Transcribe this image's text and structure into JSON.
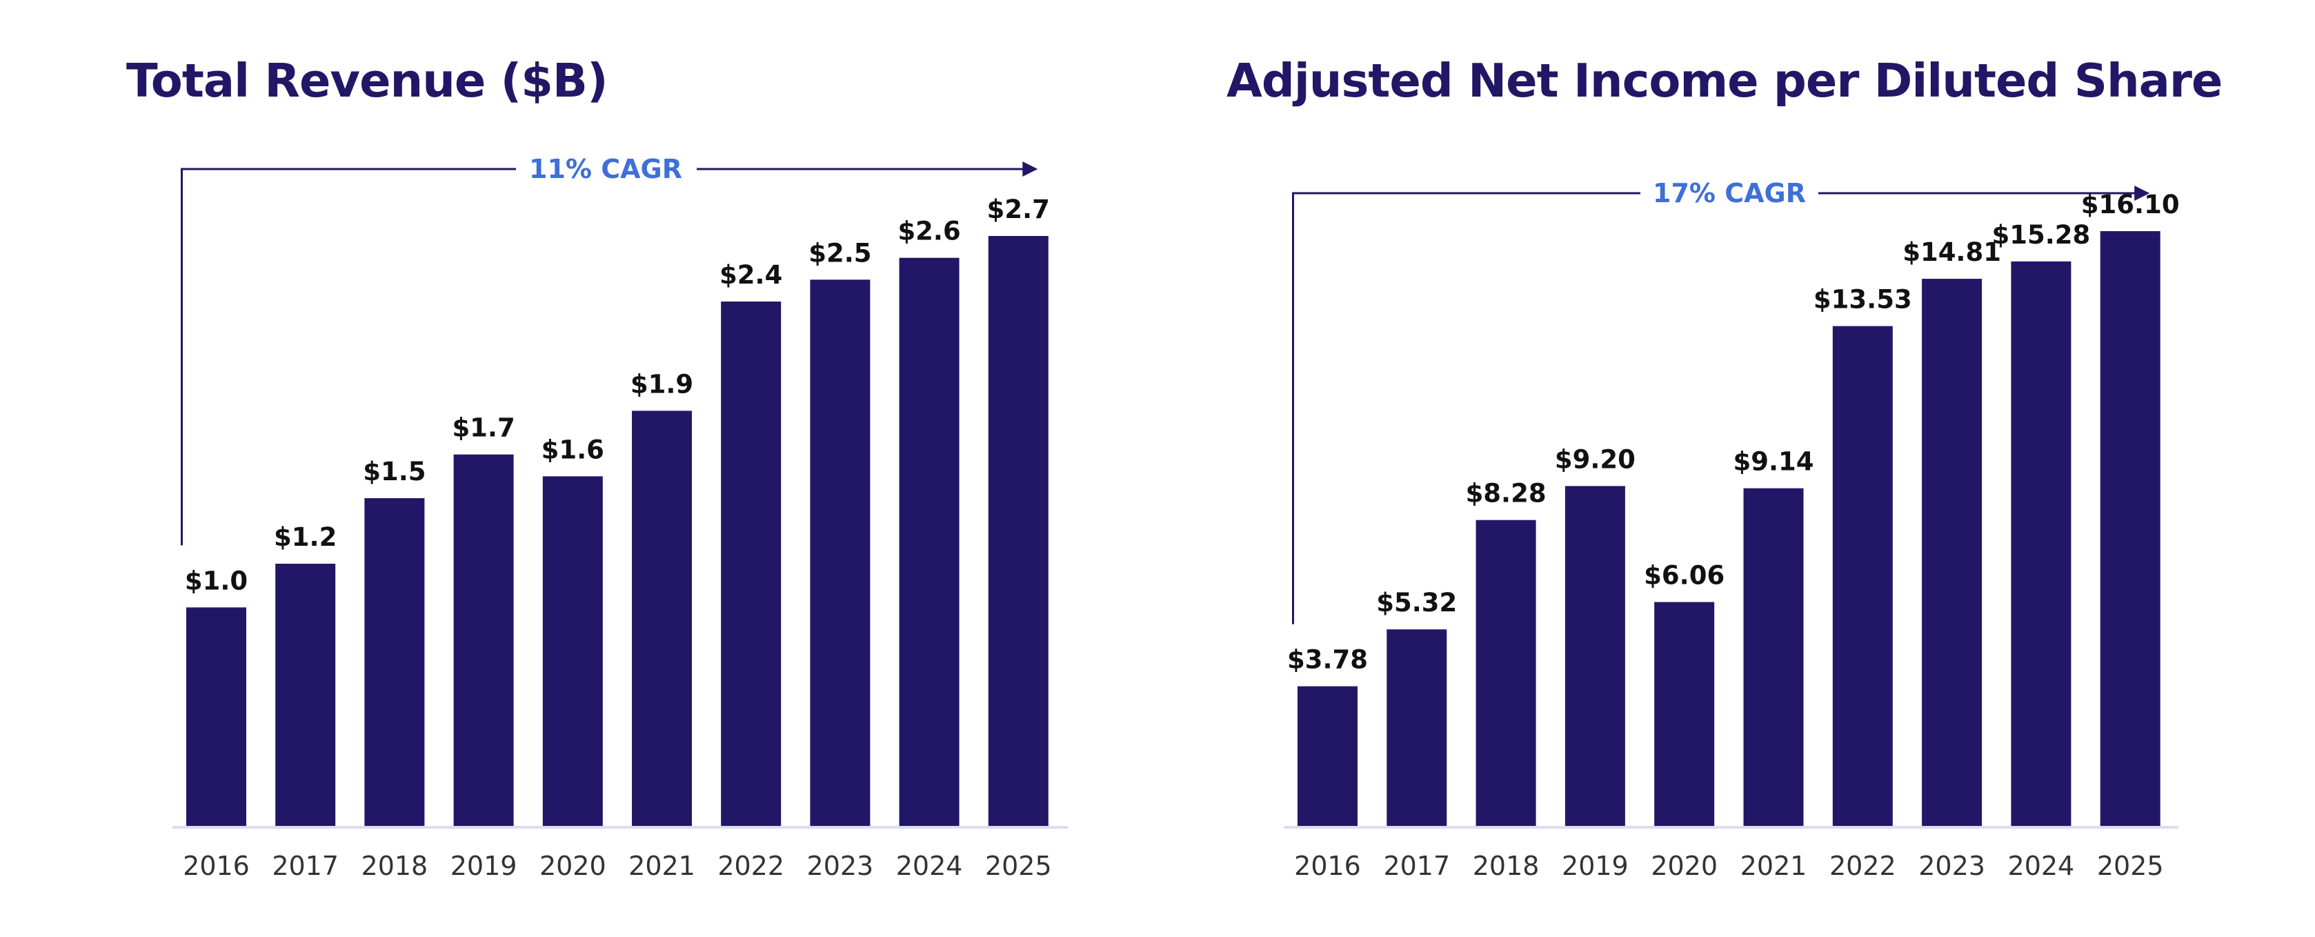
{
  "colors": {
    "bar": "#221766",
    "title": "#221766",
    "cagr_text": "#3f6fd8",
    "axis_line": "#dcdcf2",
    "value_text": "#111111",
    "tick_text": "#333333"
  },
  "chart_data": [
    {
      "type": "bar",
      "title": "Total Revenue ($B)",
      "categories": [
        "2016",
        "2017",
        "2018",
        "2019",
        "2020",
        "2021",
        "2022",
        "2023",
        "2024",
        "2025"
      ],
      "values": [
        1.0,
        1.2,
        1.5,
        1.7,
        1.6,
        1.9,
        2.4,
        2.5,
        2.6,
        2.7
      ],
      "value_labels": [
        "$1.0",
        "$1.2",
        "$1.5",
        "$1.7",
        "$1.6",
        "$1.9",
        "$2.4",
        "$2.5",
        "$2.6",
        "$2.7"
      ],
      "annotation": "11% CAGR",
      "xlabel": "",
      "ylabel": "",
      "ylim": [
        0,
        2.7
      ],
      "grid": false,
      "legend": "none"
    },
    {
      "type": "bar",
      "title": "Adjusted Net Income per Diluted Share",
      "categories": [
        "2016",
        "2017",
        "2018",
        "2019",
        "2020",
        "2021",
        "2022",
        "2023",
        "2024",
        "2025"
      ],
      "values": [
        3.78,
        5.32,
        8.28,
        9.2,
        6.06,
        9.14,
        13.53,
        14.81,
        15.28,
        16.1
      ],
      "value_labels": [
        "$3.78",
        "$5.32",
        "$8.28",
        "$9.20",
        "$6.06",
        "$9.14",
        "$13.53",
        "$14.81",
        "$15.28",
        "$16.10"
      ],
      "annotation": "17% CAGR",
      "xlabel": "",
      "ylabel": "",
      "ylim": [
        0,
        16.1
      ],
      "grid": false,
      "legend": "none"
    }
  ]
}
